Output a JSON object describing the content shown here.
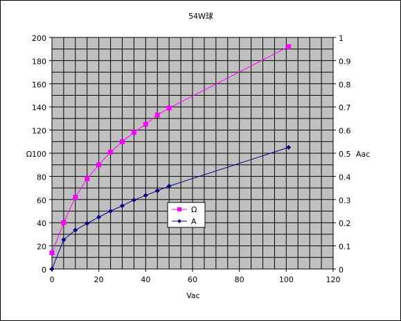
{
  "chart_data": {
    "type": "line",
    "title": "54W球",
    "xlabel": "Vac",
    "ylabel_left": "Ω",
    "ylabel_right": "Aac",
    "xlim": [
      0,
      120
    ],
    "ylim_left": [
      0,
      200
    ],
    "ylim_right": [
      0,
      1
    ],
    "x_ticks": [
      "0",
      "20",
      "40",
      "60",
      "80",
      "100",
      "120"
    ],
    "y_left_ticks": [
      "0",
      "20",
      "40",
      "60",
      "80",
      "100",
      "120",
      "140",
      "160",
      "180",
      "200"
    ],
    "y_right_ticks": [
      "0",
      "0.1",
      "0.2",
      "0.3",
      "0.4",
      "0.5",
      "0.6",
      "0.7",
      "0.8",
      "0.9",
      "1"
    ],
    "grid": true,
    "plot_background": "#c0c0c0",
    "legend_position": "center",
    "series": [
      {
        "name": "Ω",
        "axis": "left",
        "color": "#ff00ff",
        "marker": "square",
        "x": [
          0,
          5,
          10,
          15,
          20,
          25,
          30,
          35,
          40,
          45,
          50,
          101
        ],
        "y": [
          14,
          40,
          62,
          78,
          90,
          101,
          110,
          118,
          125,
          133,
          139,
          192
        ]
      },
      {
        "name": "A",
        "axis": "right",
        "color": "#000080",
        "marker": "diamond",
        "x": [
          0,
          5,
          10,
          15,
          20,
          25,
          30,
          35,
          40,
          45,
          50,
          101
        ],
        "y": [
          0.0,
          0.126,
          0.168,
          0.197,
          0.224,
          0.25,
          0.273,
          0.298,
          0.318,
          0.338,
          0.358,
          0.525
        ]
      }
    ]
  }
}
